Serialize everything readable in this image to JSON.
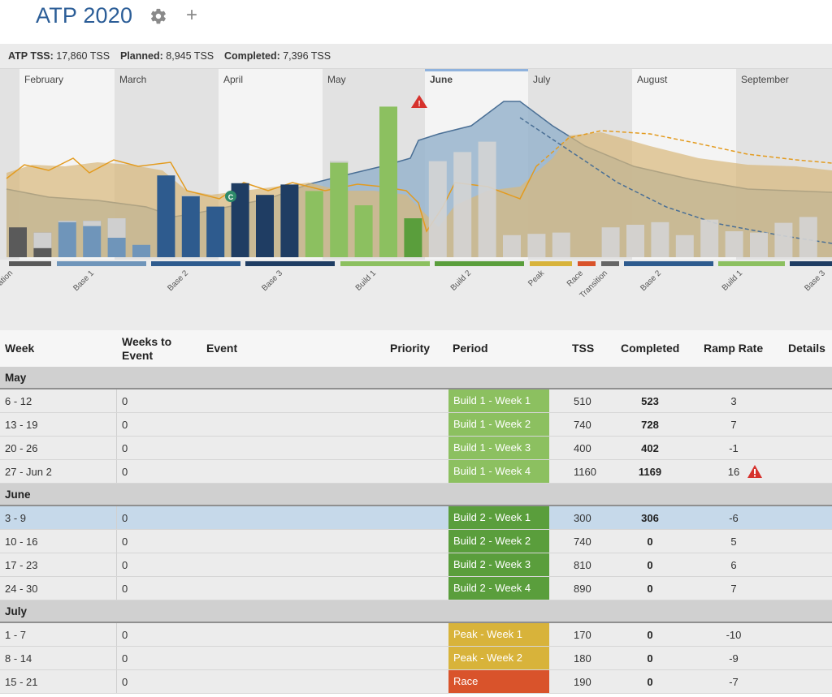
{
  "header": {
    "title": "ATP 2020",
    "settings_icon": "gear-icon",
    "add_icon": "plus-icon",
    "add_symbol": "+"
  },
  "summary": [
    {
      "label": "ATP TSS:",
      "value": "17,860 TSS"
    },
    {
      "label": "Planned:",
      "value": "8,945 TSS"
    },
    {
      "label": "Completed:",
      "value": "7,396 TSS"
    }
  ],
  "colors": {
    "accent": "#2b5d97",
    "build1": "#8cc060",
    "build2": "#5a9e3c",
    "peak": "#d8b33a",
    "race": "#d9532b",
    "base2": "#2e5b8e",
    "base3": "#1f3d63",
    "base1": "#6f95ba",
    "preparation": "#5a5a5a",
    "future": "#d0d0d0",
    "fitness_fill": "#98b4cc",
    "form_fill": "#d9b87a",
    "warning": "#d6322d"
  },
  "chart": {
    "months": [
      "February",
      "March",
      "April",
      "May",
      "June",
      "July",
      "August",
      "September"
    ],
    "selected_month": "June",
    "periods": [
      "Preparation",
      "Base 1",
      "Base 2",
      "Base 3",
      "Build 1",
      "Build 2",
      "Peak",
      "Race",
      "Transition",
      "Base 2",
      "Build 1",
      "Base 3"
    ],
    "weekly_tss": [
      {
        "planned": 230,
        "completed": 245,
        "kind": "preparation"
      },
      {
        "planned": 190,
        "completed": 70,
        "kind": "preparation"
      },
      {
        "planned": 280,
        "completed": 270,
        "kind": "base1"
      },
      {
        "planned": 280,
        "completed": 240,
        "kind": "base1"
      },
      {
        "planned": 300,
        "completed": 150,
        "kind": "base1"
      },
      {
        "planned": 95,
        "completed": 110,
        "kind": "base1"
      },
      {
        "planned": 630,
        "completed": 640,
        "kind": "base2"
      },
      {
        "planned": 475,
        "completed": 470,
        "kind": "base2"
      },
      {
        "planned": 390,
        "completed": 390,
        "kind": "base2"
      },
      {
        "planned": 570,
        "completed": 570,
        "kind": "base3"
      },
      {
        "planned": 480,
        "completed": 480,
        "kind": "base3"
      },
      {
        "planned": 560,
        "completed": 560,
        "kind": "base3"
      },
      {
        "planned": 510,
        "completed": 523,
        "kind": "build1"
      },
      {
        "planned": 740,
        "completed": 728,
        "kind": "build1"
      },
      {
        "planned": 400,
        "completed": 402,
        "kind": "build1"
      },
      {
        "planned": 1160,
        "completed": 1169,
        "kind": "build1"
      },
      {
        "planned": 300,
        "completed": 306,
        "kind": "build2"
      },
      {
        "planned": 740,
        "completed": 0,
        "kind": "build2"
      },
      {
        "planned": 810,
        "completed": 0,
        "kind": "build2"
      },
      {
        "planned": 890,
        "completed": 0,
        "kind": "build2"
      },
      {
        "planned": 170,
        "completed": 0,
        "kind": "peak"
      },
      {
        "planned": 180,
        "completed": 0,
        "kind": "peak"
      },
      {
        "planned": 190,
        "completed": 0,
        "kind": "race"
      },
      {
        "planned": 0,
        "completed": 0,
        "kind": "transition"
      },
      {
        "planned": 230,
        "completed": 0,
        "kind": "base2"
      },
      {
        "planned": 250,
        "completed": 0,
        "kind": "base2"
      },
      {
        "planned": 270,
        "completed": 0,
        "kind": "base2"
      },
      {
        "planned": 170,
        "completed": 0,
        "kind": "base2"
      },
      {
        "planned": 290,
        "completed": 0,
        "kind": "build1"
      },
      {
        "planned": 200,
        "completed": 0,
        "kind": "build1"
      },
      {
        "planned": 190,
        "completed": 0,
        "kind": "build1"
      },
      {
        "planned": 265,
        "completed": 0,
        "kind": "base3"
      },
      {
        "planned": 310,
        "completed": 0,
        "kind": "base3"
      }
    ],
    "event_marker": "C",
    "warning_marker": "!"
  },
  "table": {
    "columns": {
      "week": "Week",
      "weeks_to_event": "Weeks to Event",
      "event": "Event",
      "priority": "Priority",
      "period": "Period",
      "tss": "TSS",
      "completed": "Completed",
      "ramp_rate": "Ramp Rate",
      "details": "Details"
    },
    "months": [
      {
        "name": "May",
        "rows": [
          {
            "week": "6 - 12",
            "wte": "0",
            "period": "Build 1 - Week 1",
            "color": "#8cc060",
            "tss": "510",
            "completed": "523",
            "ramp": "3",
            "warn": false
          },
          {
            "week": "13 - 19",
            "wte": "0",
            "period": "Build 1 - Week 2",
            "color": "#8cc060",
            "tss": "740",
            "completed": "728",
            "ramp": "7",
            "warn": false
          },
          {
            "week": "20 - 26",
            "wte": "0",
            "period": "Build 1 - Week 3",
            "color": "#8cc060",
            "tss": "400",
            "completed": "402",
            "ramp": "-1",
            "warn": false
          },
          {
            "week": "27 - Jun 2",
            "wte": "0",
            "period": "Build 1 - Week 4",
            "color": "#8cc060",
            "tss": "1160",
            "completed": "1169",
            "ramp": "16",
            "warn": true
          }
        ]
      },
      {
        "name": "June",
        "rows": [
          {
            "week": "3 - 9",
            "wte": "0",
            "period": "Build 2 - Week 1",
            "color": "#5a9e3c",
            "tss": "300",
            "completed": "306",
            "ramp": "-6",
            "warn": false,
            "selected": true
          },
          {
            "week": "10 - 16",
            "wte": "0",
            "period": "Build 2 - Week 2",
            "color": "#5a9e3c",
            "tss": "740",
            "completed": "0",
            "ramp": "5",
            "warn": false
          },
          {
            "week": "17 - 23",
            "wte": "0",
            "period": "Build 2 - Week 3",
            "color": "#5a9e3c",
            "tss": "810",
            "completed": "0",
            "ramp": "6",
            "warn": false
          },
          {
            "week": "24 - 30",
            "wte": "0",
            "period": "Build 2 - Week 4",
            "color": "#5a9e3c",
            "tss": "890",
            "completed": "0",
            "ramp": "7",
            "warn": false
          }
        ]
      },
      {
        "name": "July",
        "rows": [
          {
            "week": "1 - 7",
            "wte": "0",
            "period": "Peak - Week 1",
            "color": "#d8b33a",
            "tss": "170",
            "completed": "0",
            "ramp": "-10",
            "warn": false
          },
          {
            "week": "8 - 14",
            "wte": "0",
            "period": "Peak - Week 2",
            "color": "#d8b33a",
            "tss": "180",
            "completed": "0",
            "ramp": "-9",
            "warn": false
          },
          {
            "week": "15 - 21",
            "wte": "0",
            "period": "Race",
            "color": "#d9532b",
            "tss": "190",
            "completed": "0",
            "ramp": "-7",
            "warn": false
          }
        ]
      }
    ]
  }
}
